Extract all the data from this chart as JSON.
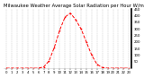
{
  "title": "Milwaukee Weather Average Solar Radiation per Hour W/m2 (Last 24 Hours)",
  "hours": [
    0,
    1,
    2,
    3,
    4,
    5,
    6,
    7,
    8,
    9,
    10,
    11,
    12,
    13,
    14,
    15,
    16,
    17,
    18,
    19,
    20,
    21,
    22,
    23
  ],
  "values": [
    0,
    0,
    0,
    0,
    0,
    0,
    0,
    10,
    55,
    160,
    290,
    390,
    420,
    370,
    300,
    200,
    100,
    30,
    5,
    0,
    0,
    0,
    0,
    0
  ],
  "line_color": "#ff0000",
  "bg_color": "#ffffff",
  "plot_bg_color": "#ffffff",
  "grid_color": "#aaaaaa",
  "text_color": "#000000",
  "title_fontsize": 3.8,
  "tick_fontsize": 2.8,
  "ylim": [
    0,
    450
  ],
  "yticks": [
    50,
    100,
    150,
    200,
    250,
    300,
    350,
    400,
    450
  ],
  "xtick_every": 1
}
